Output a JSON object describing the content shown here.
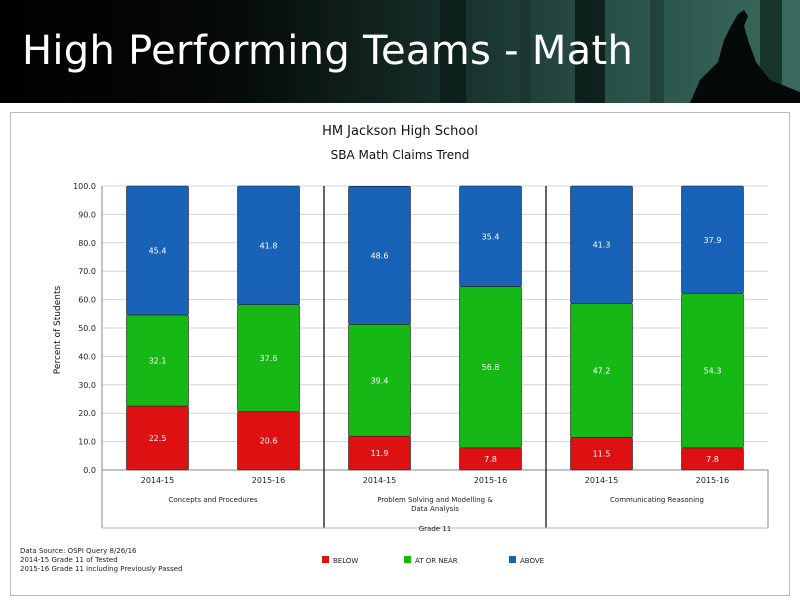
{
  "slide": {
    "title": "High Performing Teams - Math"
  },
  "chart_data": {
    "type": "bar",
    "stacked": true,
    "title": "HM Jackson High School",
    "subtitle": "SBA Math Claims Trend",
    "ylabel": "Percent of Students",
    "xlabel": "Grade 11",
    "ylim": [
      0,
      100
    ],
    "y_ticks": [
      "0.0",
      "10.0",
      "20.0",
      "30.0",
      "40.0",
      "50.0",
      "60.0",
      "70.0",
      "80.0",
      "90.0",
      "100.0"
    ],
    "categories": [
      "2014-15",
      "2015-16",
      "2014-15",
      "2015-16",
      "2014-15",
      "2015-16"
    ],
    "groups": [
      {
        "label": "Concepts and Procedures",
        "categories": [
          0,
          1
        ]
      },
      {
        "label": "Problem Solving and Modelling &",
        "label2": "Data Analysis",
        "categories": [
          2,
          3
        ]
      },
      {
        "label": "Communicating Reasoning",
        "categories": [
          4,
          5
        ]
      }
    ],
    "series": [
      {
        "name": "BELOW",
        "color": "#dd1111",
        "values": [
          22.5,
          20.6,
          11.9,
          7.8,
          11.5,
          7.8
        ]
      },
      {
        "name": "AT OR NEAR",
        "color": "#16b816",
        "values": [
          32.1,
          37.6,
          39.4,
          56.8,
          47.2,
          54.3
        ]
      },
      {
        "name": "ABOVE",
        "color": "#1862b8",
        "values": [
          45.4,
          41.8,
          48.6,
          35.4,
          41.3,
          37.9
        ]
      }
    ],
    "grid": true,
    "legend_position": "bottom"
  },
  "footnotes": [
    "Data Source: OSPI Query 8/26/16",
    "2014-15 Grade 11 of Tested",
    "2015-16 Grade 11 including Previously Passed"
  ]
}
